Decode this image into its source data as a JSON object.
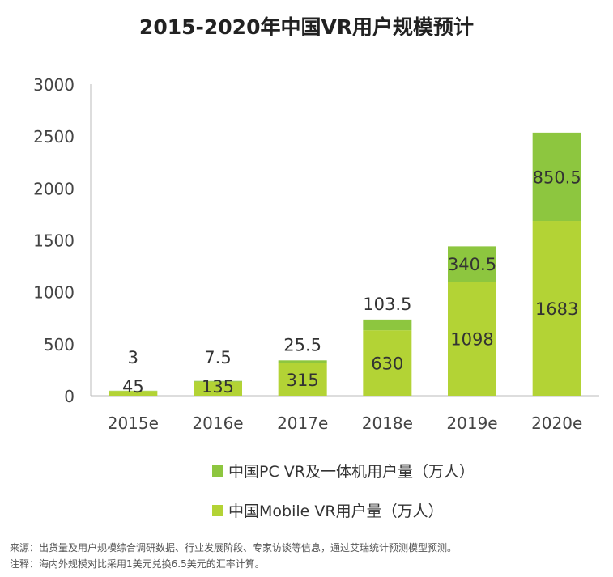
{
  "chart_data": {
    "type": "bar",
    "stacked": true,
    "title": "2015-2020年中国VR用户规模预计",
    "categories": [
      "2015e",
      "2016e",
      "2017e",
      "2018e",
      "2019e",
      "2020e"
    ],
    "series": [
      {
        "name": "中国Mobile VR用户量（万人）",
        "color": "#b3d335",
        "values": [
          45,
          135,
          315,
          630,
          1098,
          1683
        ]
      },
      {
        "name": "中国PC VR及一体机用户量（万人）",
        "color": "#8dc63f",
        "values": [
          3,
          7.5,
          25.5,
          103.5,
          340.5,
          850.5
        ]
      }
    ],
    "ylim": [
      0,
      3000
    ],
    "yticks": [
      0,
      500,
      1000,
      1500,
      2000,
      2500,
      3000
    ],
    "legend_position": "bottom",
    "grid": false
  },
  "notes": {
    "source": "来源：出货量及用户规模综合调研数据、行业发展阶段、专家访谈等信息，通过艾瑞统计预测模型预测。",
    "remark": "注释：海内外规模对比采用1美元兑换6.5美元的汇率计算。"
  }
}
